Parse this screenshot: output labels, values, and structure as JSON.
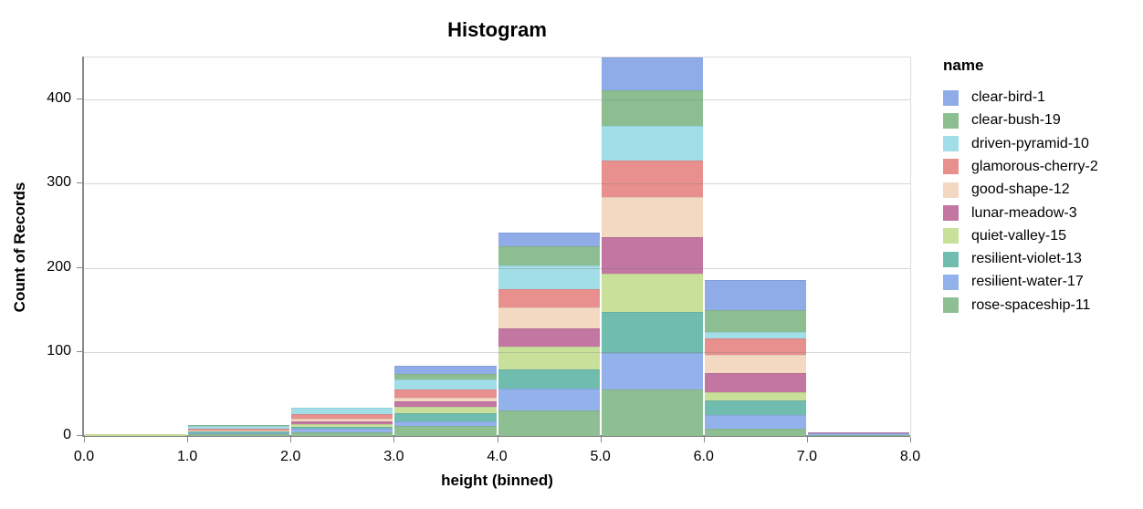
{
  "chart_data": {
    "type": "bar",
    "subtype": "stacked-histogram",
    "title": "Histogram",
    "xlabel": "height (binned)",
    "ylabel": "Count of Records",
    "legend_title": "name",
    "legend_position": "right",
    "grid": true,
    "xlim": [
      0,
      8
    ],
    "ylim": [
      0,
      450
    ],
    "bins": {
      "start": 0,
      "end": 8,
      "step": 1
    },
    "x_tick_values": [
      0,
      1,
      2,
      3,
      4,
      5,
      6,
      7,
      8
    ],
    "x_tick_labels": [
      "0.0",
      "1.0",
      "2.0",
      "3.0",
      "4.0",
      "5.0",
      "6.0",
      "7.0",
      "8.0"
    ],
    "y_tick_values": [
      0,
      100,
      200,
      300,
      400
    ],
    "y_tick_labels": [
      "0",
      "100",
      "200",
      "300",
      "400"
    ],
    "bin_edges": [
      0,
      1,
      2,
      3,
      4,
      5,
      6,
      7,
      8
    ],
    "series": [
      {
        "name": "clear-bird-1",
        "color": "#8FABE8",
        "values": [
          0,
          0,
          0,
          9,
          16,
          39,
          35,
          0
        ]
      },
      {
        "name": "clear-bush-19",
        "color": "#8CBE92",
        "values": [
          0,
          1,
          0,
          7,
          23,
          42,
          26,
          0
        ]
      },
      {
        "name": "driven-pyramid-10",
        "color": "#A2DEE8",
        "values": [
          0,
          3,
          8,
          12,
          28,
          42,
          8,
          0
        ]
      },
      {
        "name": "glamorous-cherry-2",
        "color": "#E8908E",
        "values": [
          0,
          2,
          5,
          9,
          22,
          43,
          20,
          0
        ]
      },
      {
        "name": "good-shape-12",
        "color": "#F3D8C2",
        "values": [
          0,
          1,
          4,
          5,
          25,
          48,
          21,
          0
        ]
      },
      {
        "name": "lunar-meadow-3",
        "color": "#C276A1",
        "values": [
          0,
          0,
          3,
          6,
          22,
          43,
          23,
          1
        ]
      },
      {
        "name": "quiet-valley-15",
        "color": "#C9E09B",
        "values": [
          2,
          1,
          3,
          8,
          27,
          46,
          10,
          0
        ]
      },
      {
        "name": "resilient-violet-13",
        "color": "#70BDAF",
        "values": [
          0,
          2,
          2,
          10,
          23,
          48,
          17,
          0
        ]
      },
      {
        "name": "resilient-water-17",
        "color": "#93B1EB",
        "values": [
          0,
          1,
          5,
          5,
          26,
          44,
          16,
          2
        ]
      },
      {
        "name": "rose-spaceship-11",
        "color": "#8DBF93",
        "values": [
          0,
          2,
          4,
          12,
          30,
          55,
          9,
          1
        ]
      }
    ],
    "bin_totals": [
      2,
      13,
      34,
      83,
      242,
      450,
      185,
      4
    ],
    "colors": {
      "gridline": "#dddddd",
      "axis_domain": "#888888",
      "text": "#000000",
      "background": "#ffffff"
    }
  }
}
